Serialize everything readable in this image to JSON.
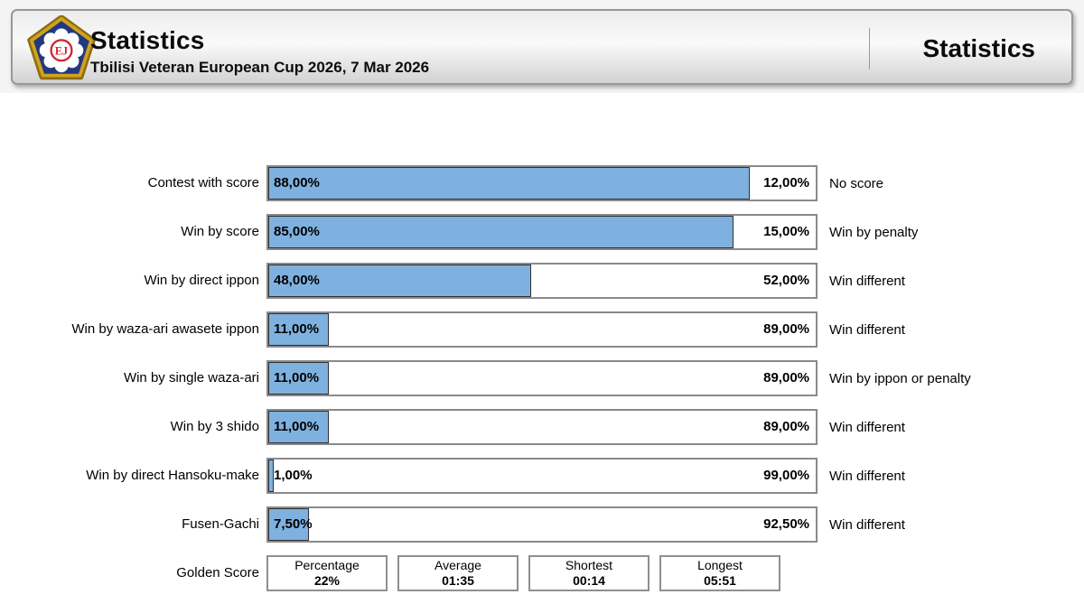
{
  "header": {
    "title": "Statistics",
    "subtitle": "Tbilisi Veteran European Cup 2026, 7 Mar 2026",
    "right_title": "Statistics",
    "logo": "eju-judo-emblem"
  },
  "colors": {
    "bar_fill": "#7fb1e0",
    "bar_fill_border": "#303030",
    "bar_track_border": "#8a8a8c",
    "logo_blue": "#21397e",
    "logo_gold": "#d2a11e",
    "logo_red": "#cf2430"
  },
  "chart_data": {
    "type": "bar",
    "orientation": "horizontal",
    "stacked": true,
    "value_range": [
      0,
      100
    ],
    "grid": false,
    "legend": "none",
    "rows": [
      {
        "left_label": "Contest with score",
        "value": 88,
        "left_text": "88,00%",
        "right_text": "12,00%",
        "right_label": "No score"
      },
      {
        "left_label": "Win by score",
        "value": 85,
        "left_text": "85,00%",
        "right_text": "15,00%",
        "right_label": "Win by penalty"
      },
      {
        "left_label": "Win by direct ippon",
        "value": 48,
        "left_text": "48,00%",
        "right_text": "52,00%",
        "right_label": "Win different"
      },
      {
        "left_label": "Win by waza-ari awasete ippon",
        "value": 11,
        "left_text": "11,00%",
        "right_text": "89,00%",
        "right_label": "Win different"
      },
      {
        "left_label": "Win by single waza-ari",
        "value": 11,
        "left_text": "11,00%",
        "right_text": "89,00%",
        "right_label": "Win by ippon or penalty"
      },
      {
        "left_label": "Win by 3 shido",
        "value": 11,
        "left_text": "11,00%",
        "right_text": "89,00%",
        "right_label": "Win different"
      },
      {
        "left_label": "Win by direct Hansoku-make",
        "value": 1,
        "left_text": "1,00%",
        "right_text": "99,00%",
        "right_label": "Win different"
      },
      {
        "left_label": "Fusen-Gachi",
        "value": 7.5,
        "left_text": "7,50%",
        "right_text": "92,50%",
        "right_label": "Win different"
      }
    ],
    "golden_score": {
      "label": "Golden Score",
      "boxes": [
        {
          "title": "Percentage",
          "value": "22%"
        },
        {
          "title": "Average",
          "value": "01:35"
        },
        {
          "title": "Shortest",
          "value": "00:14"
        },
        {
          "title": "Longest",
          "value": "05:51"
        }
      ]
    }
  }
}
